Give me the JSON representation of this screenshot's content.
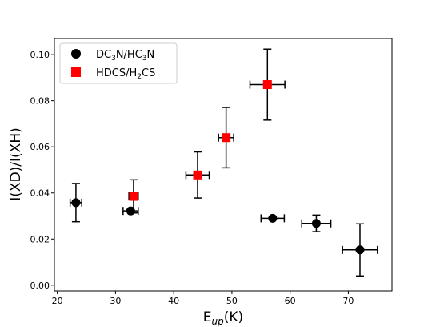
{
  "chart_data": {
    "type": "scatter",
    "xlabel": {
      "main": "E",
      "sub": "up",
      "tail": "(K)"
    },
    "ylabel": "I(XD)/I(XH)",
    "xlim": [
      19.5,
      77.5
    ],
    "ylim": [
      -0.0025,
      0.107
    ],
    "xticks": [
      20,
      30,
      40,
      50,
      60,
      70
    ],
    "yticks": [
      0.0,
      0.02,
      0.04,
      0.06,
      0.08,
      0.1
    ],
    "ytick_labels": [
      "0.00",
      "0.02",
      "0.04",
      "0.06",
      "0.08",
      "0.10"
    ],
    "grid": false,
    "legend_position": "upper-left",
    "series": [
      {
        "name": "DC3N/HC3N",
        "legend_parts": [
          {
            "t": "DC",
            "sub": false
          },
          {
            "t": "3",
            "sub": true
          },
          {
            "t": "N/HC",
            "sub": false
          },
          {
            "t": "3",
            "sub": true
          },
          {
            "t": "N",
            "sub": false
          }
        ],
        "marker": "circle",
        "color": "#000000",
        "points": [
          {
            "x": 23.2,
            "y": 0.0358,
            "xerr": 1.0,
            "yerr_low": 0.0083,
            "yerr_high": 0.0083
          },
          {
            "x": 32.6,
            "y": 0.0322,
            "xerr": 1.3,
            "yerr_low": 0.0,
            "yerr_high": 0.0
          },
          {
            "x": 57.0,
            "y": 0.029,
            "xerr": 2.0,
            "yerr_low": 0.0,
            "yerr_high": 0.0
          },
          {
            "x": 64.5,
            "y": 0.0268,
            "xerr": 2.5,
            "yerr_low": 0.0036,
            "yerr_high": 0.0036
          },
          {
            "x": 72.0,
            "y": 0.0153,
            "xerr": 3.0,
            "yerr_low": 0.0113,
            "yerr_high": 0.0113
          }
        ]
      },
      {
        "name": "HDCS/H2CS",
        "legend_parts": [
          {
            "t": "HDCS/H",
            "sub": false
          },
          {
            "t": "2",
            "sub": true
          },
          {
            "t": "CS",
            "sub": false
          }
        ],
        "marker": "square",
        "color": "#ff0000",
        "points": [
          {
            "x": 33.1,
            "y": 0.0385,
            "xerr": 0.8,
            "yerr_low": 0.0072,
            "yerr_high": 0.0072
          },
          {
            "x": 44.1,
            "y": 0.0478,
            "xerr": 2.0,
            "yerr_low": 0.01,
            "yerr_high": 0.01
          },
          {
            "x": 49.0,
            "y": 0.064,
            "xerr": 1.3,
            "yerr_low": 0.0131,
            "yerr_high": 0.0131
          },
          {
            "x": 56.1,
            "y": 0.087,
            "xerr": 3.0,
            "yerr_low": 0.0154,
            "yerr_high": 0.0154
          }
        ]
      }
    ]
  }
}
